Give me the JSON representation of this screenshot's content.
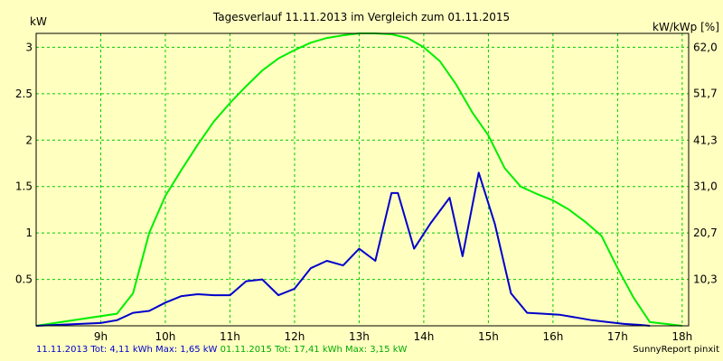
{
  "chart_data": {
    "type": "line",
    "title": "Tagesverlauf 11.11.2013 im Vergleich zum 01.11.2015",
    "ylabel_left": "kW",
    "ylabel_right": "kW/kWp [%]",
    "ylim": [
      0,
      3.15
    ],
    "y_ticks": [
      0.5,
      1,
      1.5,
      2,
      2.5,
      3
    ],
    "y_tick_labels": [
      "0.5",
      "1",
      "1.5",
      "2",
      "2.5",
      "3"
    ],
    "y2_ticks": [
      10.3,
      20.7,
      31.0,
      41.3,
      51.7,
      62.0
    ],
    "y2_tick_labels": [
      "10,3",
      "20,7",
      "31,0",
      "41,3",
      "51,7",
      "62,0"
    ],
    "y2_scale_per_kw": 20.67,
    "xlim": [
      8.0,
      18.1
    ],
    "x_ticks": [
      9,
      10,
      11,
      12,
      13,
      14,
      15,
      16,
      17,
      18
    ],
    "x_tick_labels": [
      "9h",
      "10h",
      "11h",
      "12h",
      "13h",
      "14h",
      "15h",
      "16h",
      "17h",
      "18h"
    ],
    "grid": true,
    "series": [
      {
        "name": "01.11.2015",
        "color": "#00ee00",
        "x": [
          8.0,
          9.25,
          9.5,
          9.75,
          10.0,
          10.25,
          10.5,
          10.75,
          11.0,
          11.25,
          11.5,
          11.75,
          12.0,
          12.25,
          12.5,
          12.75,
          13.0,
          13.25,
          13.5,
          13.75,
          14.0,
          14.25,
          14.5,
          14.75,
          15.0,
          15.25,
          15.5,
          15.75,
          16.0,
          16.25,
          16.5,
          16.75,
          17.0,
          17.25,
          17.5,
          17.75,
          18.0
        ],
        "y": [
          0.0,
          0.13,
          0.35,
          1.0,
          1.4,
          1.68,
          1.95,
          2.2,
          2.4,
          2.58,
          2.75,
          2.88,
          2.97,
          3.05,
          3.1,
          3.13,
          3.15,
          3.15,
          3.14,
          3.1,
          3.0,
          2.85,
          2.6,
          2.3,
          2.05,
          1.7,
          1.5,
          1.42,
          1.35,
          1.25,
          1.12,
          0.97,
          0.62,
          0.3,
          0.04,
          0.02,
          0.0
        ]
      },
      {
        "name": "11.11.2013",
        "color": "#0000cc",
        "x": [
          8.0,
          9.0,
          9.25,
          9.5,
          9.75,
          10.0,
          10.25,
          10.5,
          10.75,
          11.0,
          11.25,
          11.5,
          11.75,
          12.0,
          12.25,
          12.5,
          12.75,
          13.0,
          13.25,
          13.5,
          13.6,
          13.85,
          14.1,
          14.4,
          14.6,
          14.85,
          15.1,
          15.35,
          15.6,
          15.85,
          16.1,
          16.35,
          16.6,
          16.85,
          17.1,
          17.35,
          17.5
        ],
        "y": [
          0.0,
          0.03,
          0.06,
          0.14,
          0.16,
          0.25,
          0.32,
          0.34,
          0.33,
          0.33,
          0.48,
          0.5,
          0.33,
          0.4,
          0.62,
          0.7,
          0.65,
          0.83,
          0.7,
          1.43,
          1.43,
          0.83,
          1.1,
          1.38,
          0.75,
          1.65,
          1.1,
          0.35,
          0.14,
          0.13,
          0.12,
          0.09,
          0.06,
          0.04,
          0.02,
          0.01,
          0.0
        ]
      }
    ]
  },
  "footer": {
    "series1_text": "11.11.2013 Tot: 4,11 kWh Max: 1,65 kW",
    "series2_text": "01.11.2015 Tot: 17,41 kWh Max: 3,15 kW",
    "credit": "SunnyReport pinxit"
  }
}
